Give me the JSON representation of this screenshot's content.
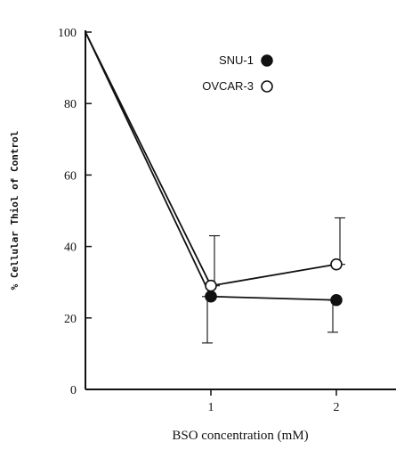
{
  "chart_data": {
    "type": "line",
    "title": "",
    "xlabel": "BSO concentration (mM)",
    "ylabel": "% Cellular Thiol of Control",
    "x": [
      0,
      1,
      2
    ],
    "x_ticks": [
      "1",
      "2"
    ],
    "y_ticks": [
      "0",
      "20",
      "40",
      "60",
      "80",
      "100"
    ],
    "xlim": [
      0,
      2.5
    ],
    "ylim": [
      0,
      100
    ],
    "grid": false,
    "legend_position": "top-right",
    "series": [
      {
        "name": "SNU-1",
        "marker": "filled-circle",
        "color": "#111111",
        "values": [
          100,
          26,
          25
        ],
        "error_lower": [
          null,
          13,
          16
        ],
        "error_upper": [
          null,
          26,
          25
        ]
      },
      {
        "name": "OVCAR-3",
        "marker": "open-circle",
        "color": "#111111",
        "values": [
          100,
          29,
          35
        ],
        "error_lower": [
          null,
          29,
          35
        ],
        "error_upper": [
          null,
          43,
          48
        ]
      }
    ]
  }
}
